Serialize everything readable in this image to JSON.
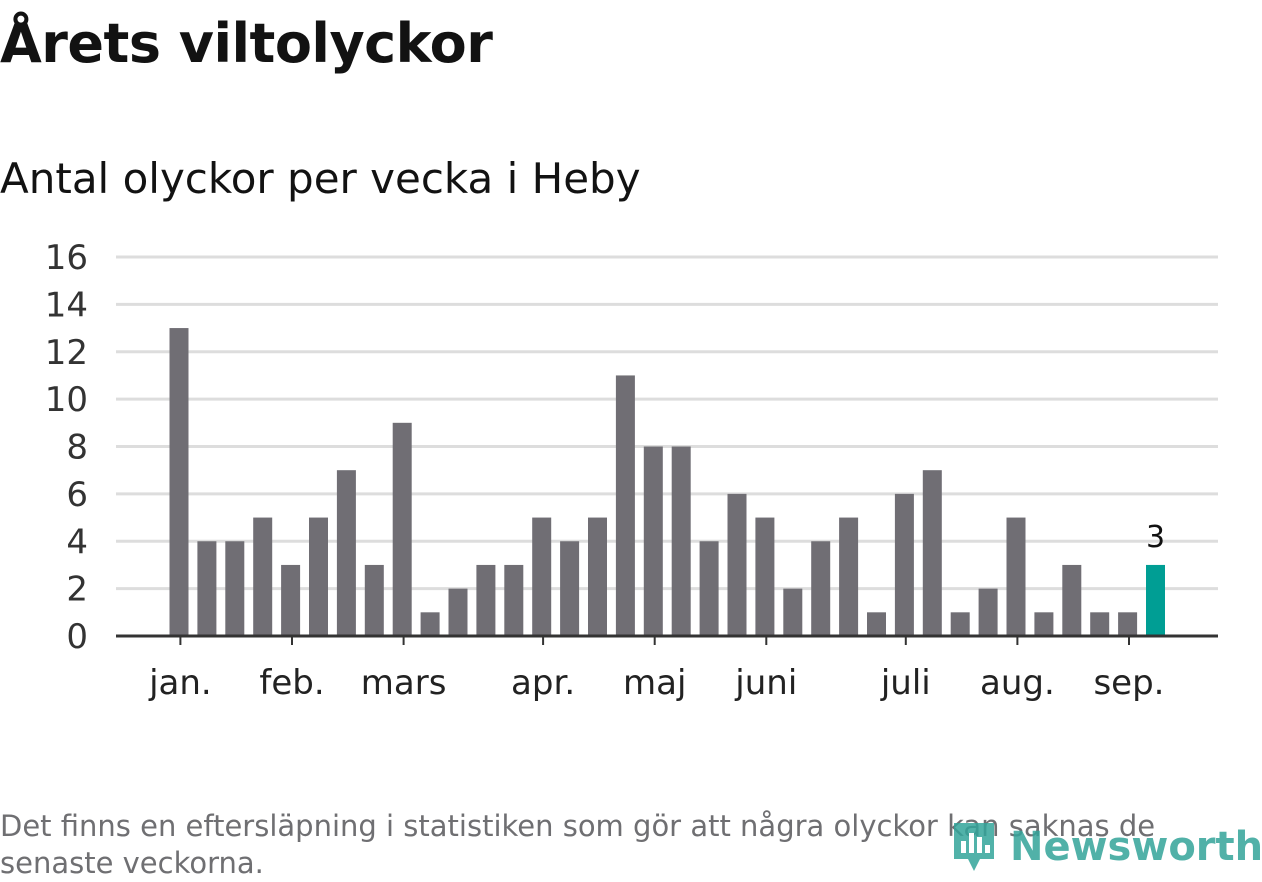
{
  "header": {
    "title": "Årets viltolyckor",
    "subtitle": "Antal olyckor per vecka i Heby"
  },
  "footnote": "Det finns en eftersläpning i statistiken som gör att några olyckor kan saknas de senaste veckorna.",
  "logo": {
    "text": "Newsworthy",
    "icon": "newsworthy-logo-icon",
    "color": "#33a49a"
  },
  "colors": {
    "bar": "#706e74",
    "highlight": "#009e94",
    "grid": "#dddddd",
    "axis": "#333333"
  },
  "chart_data": {
    "type": "bar",
    "title": "Antal olyckor per vecka i Heby",
    "values": [
      13,
      4,
      4,
      5,
      3,
      5,
      7,
      3,
      9,
      1,
      2,
      3,
      3,
      5,
      4,
      5,
      11,
      8,
      8,
      4,
      6,
      5,
      2,
      4,
      5,
      1,
      6,
      7,
      1,
      2,
      5,
      1,
      3,
      1,
      1,
      3
    ],
    "highlight_index": 35,
    "highlight_label": "3",
    "ylim": [
      0,
      16
    ],
    "yticks": [
      "0",
      "2",
      "4",
      "6",
      "8",
      "10",
      "12",
      "14",
      "16"
    ],
    "month_ticks": [
      {
        "label": "jan.",
        "position": 0.05
      },
      {
        "label": "feb.",
        "position": 4.05
      },
      {
        "label": "mars",
        "position": 8.05
      },
      {
        "label": "apr.",
        "position": 13.05
      },
      {
        "label": "maj",
        "position": 17.05
      },
      {
        "label": "juni",
        "position": 21.05
      },
      {
        "label": "juli",
        "position": 26.05
      },
      {
        "label": "aug.",
        "position": 30.05
      },
      {
        "label": "sep.",
        "position": 34.05
      }
    ],
    "grid": true,
    "xlabel": "",
    "ylabel": ""
  }
}
